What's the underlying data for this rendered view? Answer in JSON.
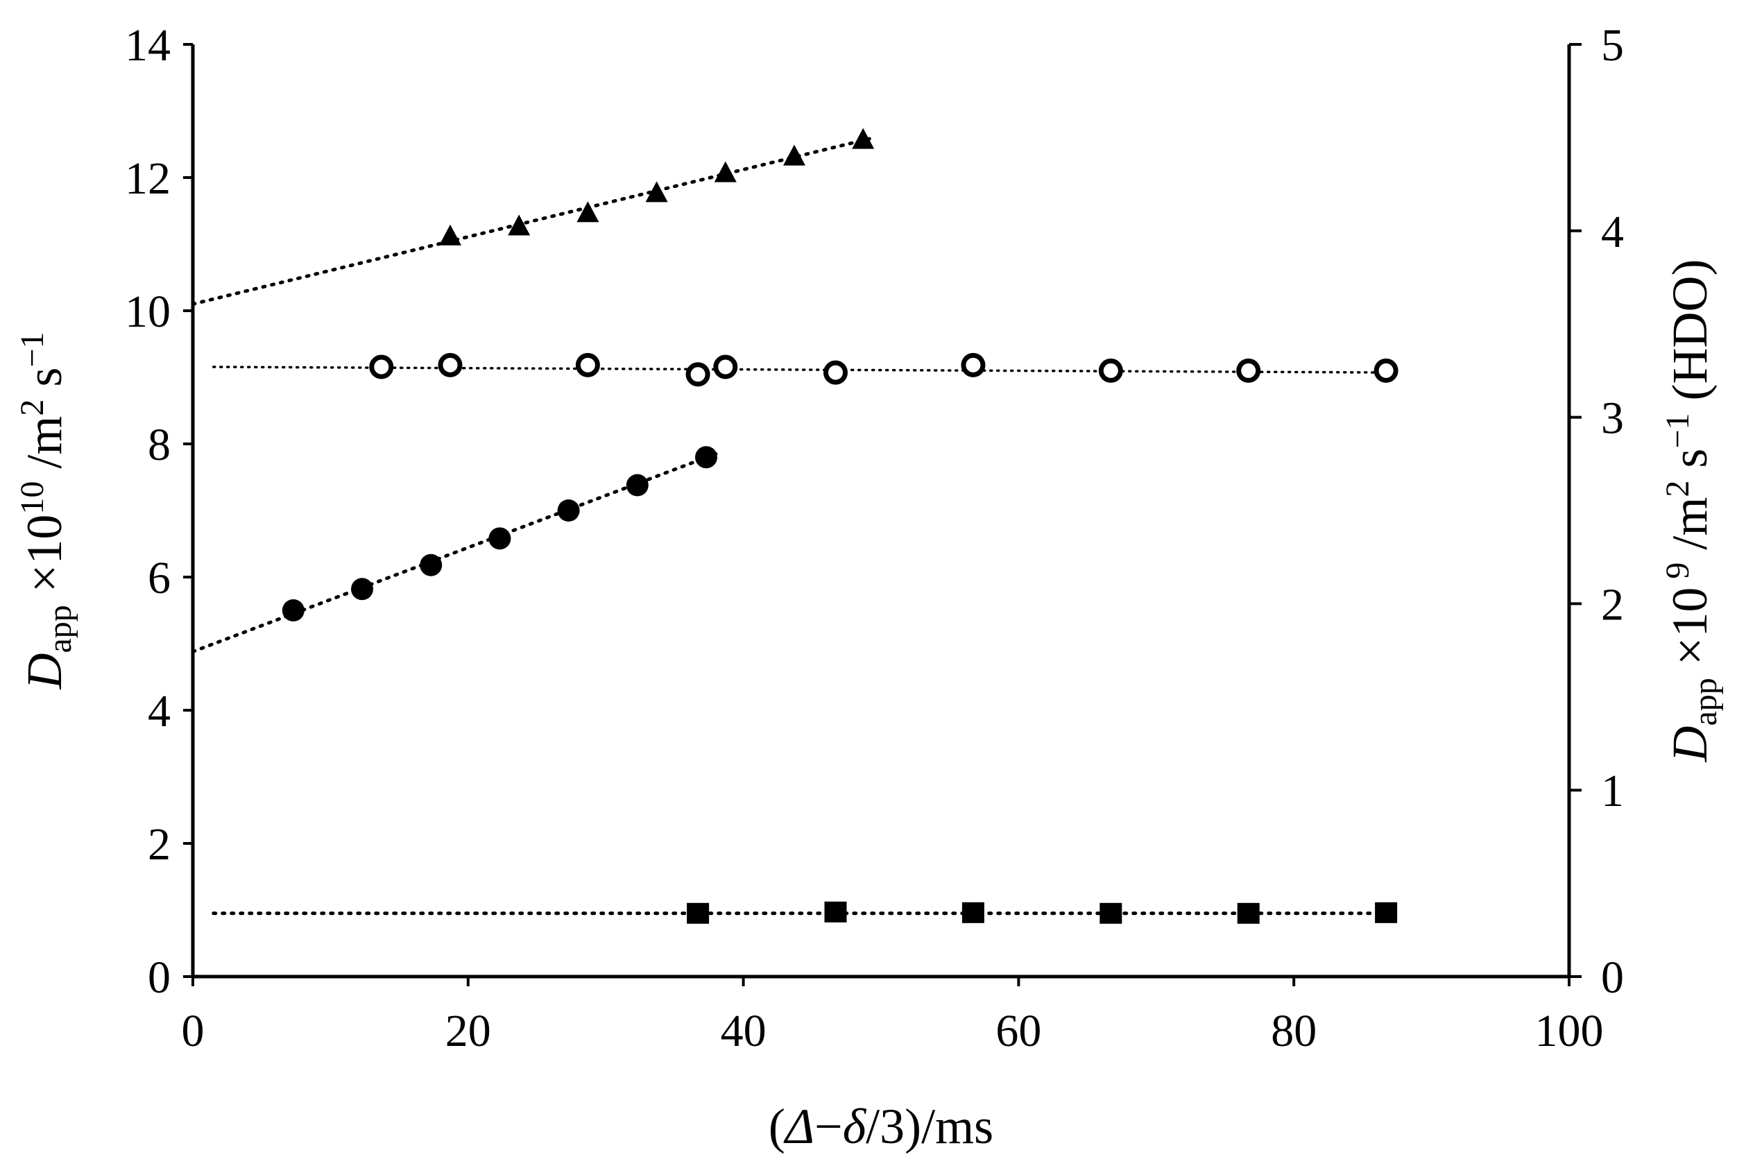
{
  "chart_data": {
    "type": "scatter",
    "x_axis": {
      "label_prefix": "(",
      "label_delta": "Δ",
      "label_minus": "−",
      "label_small_delta": "δ",
      "label_suffix": "/3)/ms",
      "range": [
        0,
        100
      ],
      "ticks": [
        "0",
        "20",
        "40",
        "60",
        "80",
        "100"
      ]
    },
    "y_axis_left": {
      "label_D": "D",
      "label_sub": "app",
      "label_mid": " ×10",
      "label_exp": "10",
      "label_units": " /m",
      "label_sq": "2",
      "label_s": " s",
      "label_inv": "−1",
      "range": [
        0,
        14
      ],
      "ticks": [
        "0",
        "2",
        "4",
        "6",
        "8",
        "10",
        "12",
        "14"
      ]
    },
    "y_axis_right": {
      "label_D": "D",
      "label_sub": "app",
      "label_mid": " ×10",
      "label_exp": " 9",
      "label_units": " /m",
      "label_sq": "2",
      "label_s": " s",
      "label_inv": "−1",
      "label_tail": " (HDO)",
      "range": [
        0,
        5
      ],
      "ticks": [
        "0",
        "1",
        "2",
        "3",
        "4",
        "5"
      ]
    },
    "series": [
      {
        "name": "triangles",
        "marker": "triangle-filled",
        "axis": "left",
        "x": [
          18.7,
          23.7,
          28.7,
          33.7,
          38.7,
          43.7,
          48.7
        ],
        "y": [
          11.1,
          11.25,
          11.45,
          11.75,
          12.05,
          12.3,
          12.55
        ],
        "fit": {
          "x": [
            0,
            49.5
          ],
          "y": [
            10.1,
            12.6
          ],
          "style": "dotted"
        }
      },
      {
        "name": "open circles (HDO)",
        "marker": "circle-open",
        "axis": "right",
        "x": [
          13.7,
          18.7,
          28.7,
          36.7,
          38.7,
          46.7,
          56.7,
          66.7,
          76.7,
          86.7
        ],
        "y": [
          3.27,
          3.28,
          3.28,
          3.23,
          3.27,
          3.24,
          3.28,
          3.25,
          3.25,
          3.25
        ],
        "fit": {
          "x": [
            1.5,
            87
          ],
          "y": [
            3.27,
            3.24
          ],
          "style": "dotted-thin"
        }
      },
      {
        "name": "filled circles",
        "marker": "circle-filled",
        "axis": "left",
        "x": [
          7.3,
          12.3,
          17.3,
          22.3,
          27.3,
          32.3,
          37.3
        ],
        "y": [
          5.5,
          5.82,
          6.18,
          6.58,
          7.0,
          7.38,
          7.8
        ],
        "fit": {
          "x": [
            0,
            38
          ],
          "y": [
            4.88,
            7.85
          ],
          "style": "dotted"
        }
      },
      {
        "name": "squares",
        "marker": "square-filled",
        "axis": "left",
        "x": [
          36.7,
          46.7,
          56.7,
          66.7,
          76.7,
          86.7
        ],
        "y": [
          0.95,
          0.97,
          0.96,
          0.95,
          0.95,
          0.96
        ],
        "fit": {
          "x": [
            1.5,
            87
          ],
          "y": [
            0.95,
            0.95
          ],
          "style": "dotted"
        }
      }
    ]
  }
}
